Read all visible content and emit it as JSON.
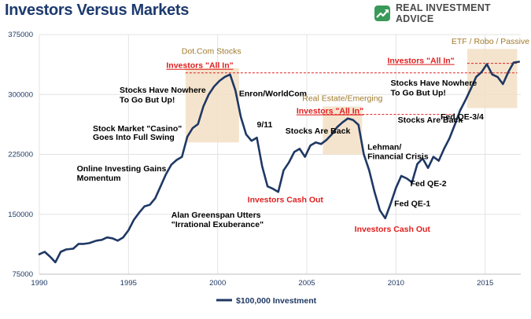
{
  "header": {
    "title": "Investors Versus Markets",
    "brand": "REAL INVESTMENT ADVICE",
    "brand_icon": "growth-arrow-icon"
  },
  "colors": {
    "line": "#1f3864",
    "annotation": "#000000",
    "red": "#e02020",
    "gold": "#a07a2b",
    "box": "#f3dfc4",
    "grid": "#e3e3e3",
    "axis_text": "#1f3864",
    "brand": "#3a9a5a"
  },
  "chart_data": {
    "type": "line",
    "title": "Investors Versus Markets",
    "xlabel": "",
    "ylabel": "",
    "xlim": [
      1990,
      2017
    ],
    "ylim": [
      75000,
      375000
    ],
    "x_ticks": [
      1990,
      1995,
      2000,
      2005,
      2010,
      2015
    ],
    "y_ticks": [
      75000,
      150000,
      225000,
      300000,
      375000
    ],
    "y_tick_labels": [
      "75000",
      "150000",
      "225000",
      "300000",
      "375000"
    ],
    "legend": {
      "position": "bottom",
      "label": "$100,000 Investment"
    },
    "grid": true,
    "series": [
      {
        "name": "$100,000 Investment",
        "x": [
          1990,
          1990.3,
          1990.6,
          1990.9,
          1991.2,
          1991.5,
          1991.9,
          1992.2,
          1992.5,
          1992.8,
          1993.2,
          1993.5,
          1993.8,
          1994.1,
          1994.4,
          1994.7,
          1995.0,
          1995.3,
          1995.6,
          1995.9,
          1996.2,
          1996.5,
          1996.8,
          1997.1,
          1997.4,
          1997.7,
          1998.0,
          1998.3,
          1998.6,
          1998.9,
          1999.2,
          1999.5,
          1999.8,
          2000.1,
          2000.4,
          2000.7,
          2001.0,
          2001.3,
          2001.6,
          2001.9,
          2002.2,
          2002.5,
          2002.8,
          2003.1,
          2003.4,
          2003.7,
          2004.0,
          2004.3,
          2004.6,
          2004.9,
          2005.2,
          2005.5,
          2005.8,
          2006.1,
          2006.4,
          2006.7,
          2007.0,
          2007.3,
          2007.6,
          2007.9,
          2008.2,
          2008.5,
          2008.8,
          2009.1,
          2009.4,
          2009.7,
          2010.0,
          2010.3,
          2010.6,
          2010.9,
          2011.2,
          2011.5,
          2011.8,
          2012.1,
          2012.4,
          2012.7,
          2013.0,
          2013.3,
          2013.6,
          2013.9,
          2014.2,
          2014.5,
          2014.8,
          2015.1,
          2015.4,
          2015.7,
          2016.0,
          2016.3,
          2016.6,
          2016.9
        ],
        "y": [
          100000,
          103000,
          97000,
          90000,
          103000,
          106000,
          107000,
          113000,
          113000,
          114000,
          117000,
          118000,
          121000,
          120000,
          117000,
          121000,
          130000,
          143000,
          152000,
          160000,
          162000,
          170000,
          185000,
          200000,
          212000,
          218000,
          222000,
          247000,
          258000,
          263000,
          285000,
          300000,
          310000,
          317000,
          322000,
          325000,
          305000,
          272000,
          250000,
          242000,
          246000,
          210000,
          185000,
          182000,
          178000,
          205000,
          215000,
          228000,
          232000,
          222000,
          236000,
          240000,
          238000,
          243000,
          250000,
          259000,
          265000,
          270000,
          268000,
          262000,
          225000,
          205000,
          178000,
          155000,
          145000,
          163000,
          183000,
          198000,
          195000,
          190000,
          213000,
          220000,
          208000,
          222000,
          217000,
          232000,
          245000,
          262000,
          280000,
          293000,
          307000,
          322000,
          328000,
          338000,
          325000,
          322000,
          313000,
          328000,
          340000,
          341000
        ]
      }
    ],
    "highlight_boxes": [
      {
        "x0": 1998.2,
        "x1": 2001.2,
        "y0": 240000,
        "y1": 333000
      },
      {
        "x0": 2005.9,
        "x1": 2008.1,
        "y0": 225000,
        "y1": 285000
      },
      {
        "x0": 2014.0,
        "x1": 2016.8,
        "y0": 283000,
        "y1": 357000
      }
    ],
    "reference_lines": [
      {
        "x0": 1998.2,
        "x1": 2016.8,
        "y": 327000
      },
      {
        "x0": 2014.0,
        "x1": 2016.8,
        "y": 339000
      },
      {
        "x0": 2005.9,
        "x1": 2013.4,
        "y": 275000
      }
    ],
    "annotations": [
      {
        "text": "Dot.Com Stocks",
        "x": 1999.65,
        "y": 351000,
        "color": "gold",
        "anchor": "middle"
      },
      {
        "text": "Investors \"All In\"",
        "x": 1999.0,
        "y": 333000,
        "color": "red",
        "anchor": "middle",
        "underline": true
      },
      {
        "text": "Stocks Have Nowhere",
        "x": 1994.5,
        "y": 302000,
        "color": "annotation",
        "anchor": "start"
      },
      {
        "text": "To Go But Up!",
        "x": 1994.5,
        "y": 290000,
        "color": "annotation",
        "anchor": "start"
      },
      {
        "text": "Enron/WorldCom",
        "x": 2001.2,
        "y": 298000,
        "color": "annotation",
        "anchor": "start"
      },
      {
        "text": "Stock Market \"Casino\"",
        "x": 1993.0,
        "y": 254000,
        "color": "annotation",
        "anchor": "start"
      },
      {
        "text": "Goes Into Full Swing",
        "x": 1993.0,
        "y": 243000,
        "color": "annotation",
        "anchor": "start"
      },
      {
        "text": "9/11",
        "x": 2002.2,
        "y": 259000,
        "color": "annotation",
        "anchor": "start"
      },
      {
        "text": "Stocks Are Back",
        "x": 2003.8,
        "y": 251000,
        "color": "annotation",
        "anchor": "start"
      },
      {
        "text": "Online Investing Gains",
        "x": 1992.1,
        "y": 204000,
        "color": "annotation",
        "anchor": "start"
      },
      {
        "text": "Momentum",
        "x": 1992.1,
        "y": 192000,
        "color": "annotation",
        "anchor": "start"
      },
      {
        "text": "Investors Cash Out",
        "x": 2003.8,
        "y": 165000,
        "color": "red",
        "anchor": "middle"
      },
      {
        "text": "Alan Greenspan Utters",
        "x": 1997.4,
        "y": 146000,
        "color": "annotation",
        "anchor": "start"
      },
      {
        "text": "\"Irrational Exuberance\"",
        "x": 1997.4,
        "y": 134000,
        "color": "annotation",
        "anchor": "start"
      },
      {
        "text": "Real Estate/Emerging",
        "x": 2007.0,
        "y": 292000,
        "color": "gold",
        "anchor": "middle"
      },
      {
        "text": "Investors \"All In\"",
        "x": 2006.3,
        "y": 276000,
        "color": "red",
        "anchor": "middle",
        "underline": true
      },
      {
        "text": "Lehman/",
        "x": 2008.4,
        "y": 231000,
        "color": "annotation",
        "anchor": "start"
      },
      {
        "text": "Financial Crisis",
        "x": 2008.4,
        "y": 219000,
        "color": "annotation",
        "anchor": "start"
      },
      {
        "text": "Investors Cash Out",
        "x": 2009.8,
        "y": 128000,
        "color": "red",
        "anchor": "middle"
      },
      {
        "text": "Fed QE-1",
        "x": 2009.9,
        "y": 160000,
        "color": "annotation",
        "anchor": "start"
      },
      {
        "text": "Fed QE-2",
        "x": 2010.8,
        "y": 185000,
        "color": "annotation",
        "anchor": "start"
      },
      {
        "text": "ETF / Robo / Passive",
        "x": 2015.3,
        "y": 363000,
        "color": "gold",
        "anchor": "middle"
      },
      {
        "text": "Investors \"All In\"",
        "x": 2011.4,
        "y": 339000,
        "color": "red",
        "anchor": "middle",
        "underline": true
      },
      {
        "text": "Stocks Have Nowhere",
        "x": 2009.7,
        "y": 311000,
        "color": "annotation",
        "anchor": "start"
      },
      {
        "text": "To Go But Up!",
        "x": 2009.7,
        "y": 299000,
        "color": "annotation",
        "anchor": "start"
      },
      {
        "text": "Stocks Are Back",
        "x": 2010.1,
        "y": 265000,
        "color": "annotation",
        "anchor": "start"
      },
      {
        "text": "Fed QE-3/4",
        "x": 2012.5,
        "y": 269000,
        "color": "annotation",
        "anchor": "start"
      }
    ]
  }
}
